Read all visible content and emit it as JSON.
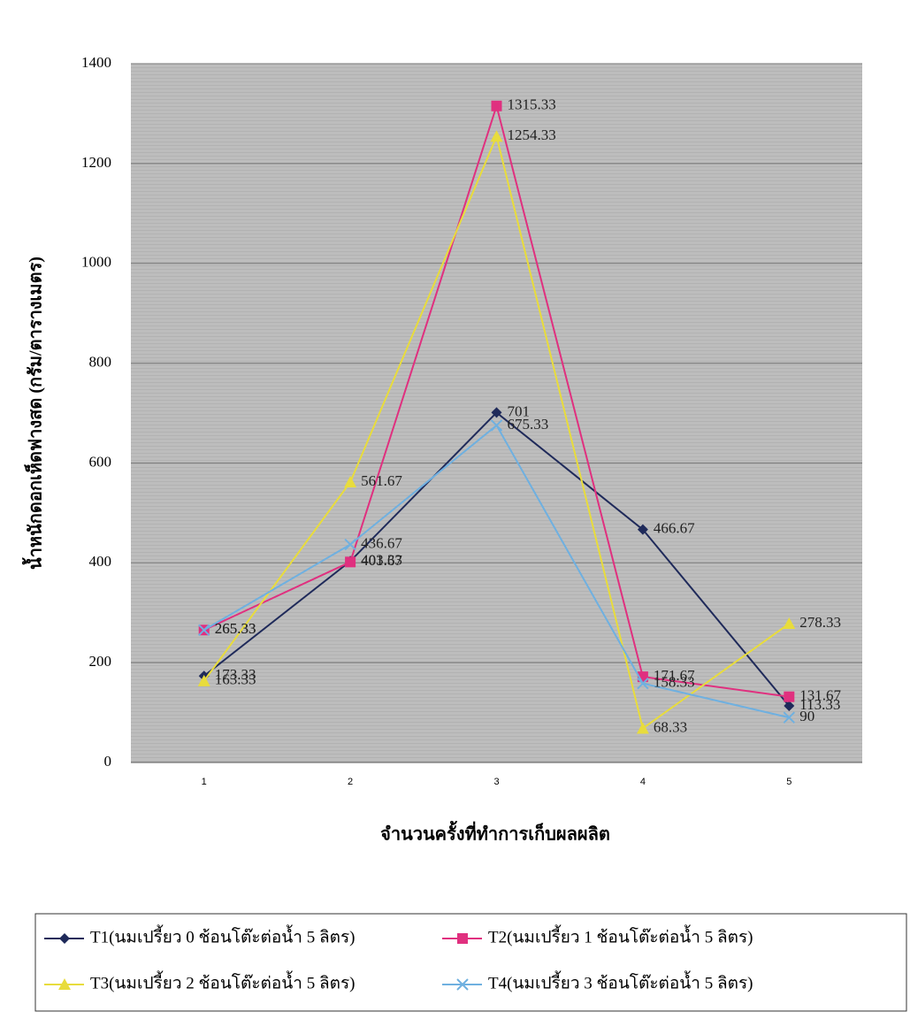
{
  "chart_data": {
    "type": "line",
    "x_label": "จำนวนครั้งที่ทำการเก็บผลผลิต",
    "y_label": "น้ำหนักดอกเห็ดฟางสด (กรัม/ตารางเมตร)",
    "categories": [
      "1",
      "2",
      "3",
      "4",
      "5"
    ],
    "series": [
      {
        "name": "T1(นมเปรี้ยว 0 ช้อนโต๊ะต่อน้ำ 5 ลิตร)",
        "color": "#1f2a5a",
        "marker": "diamond",
        "values": [
          173.33,
          403.33,
          701,
          466.67,
          113.33
        ]
      },
      {
        "name": "T2(นมเปรี้ยว 1 ช้อนโต๊ะต่อน้ำ 5 ลิตร)",
        "color": "#e0307f",
        "marker": "square",
        "values": [
          265.33,
          401.67,
          1315.33,
          171.67,
          131.67
        ]
      },
      {
        "name": "T3(นมเปรี้ยว 2 ช้อนโต๊ะต่อน้ำ 5 ลิตร)",
        "color": "#e8dc3c",
        "marker": "triangle",
        "values": [
          163.33,
          561.67,
          1254.33,
          68.33,
          278.33
        ]
      },
      {
        "name": "T4(นมเปรี้ยว 3 ช้อนโต๊ะต่อน้ำ 5 ลิตร)",
        "color": "#6fb0e0",
        "marker": "x",
        "values": [
          265.33,
          436.67,
          675.33,
          158.33,
          90
        ]
      }
    ],
    "ylim": [
      0,
      1400
    ],
    "yticks": [
      0,
      200,
      400,
      600,
      800,
      1000,
      1200,
      1400
    ],
    "grid": true
  }
}
